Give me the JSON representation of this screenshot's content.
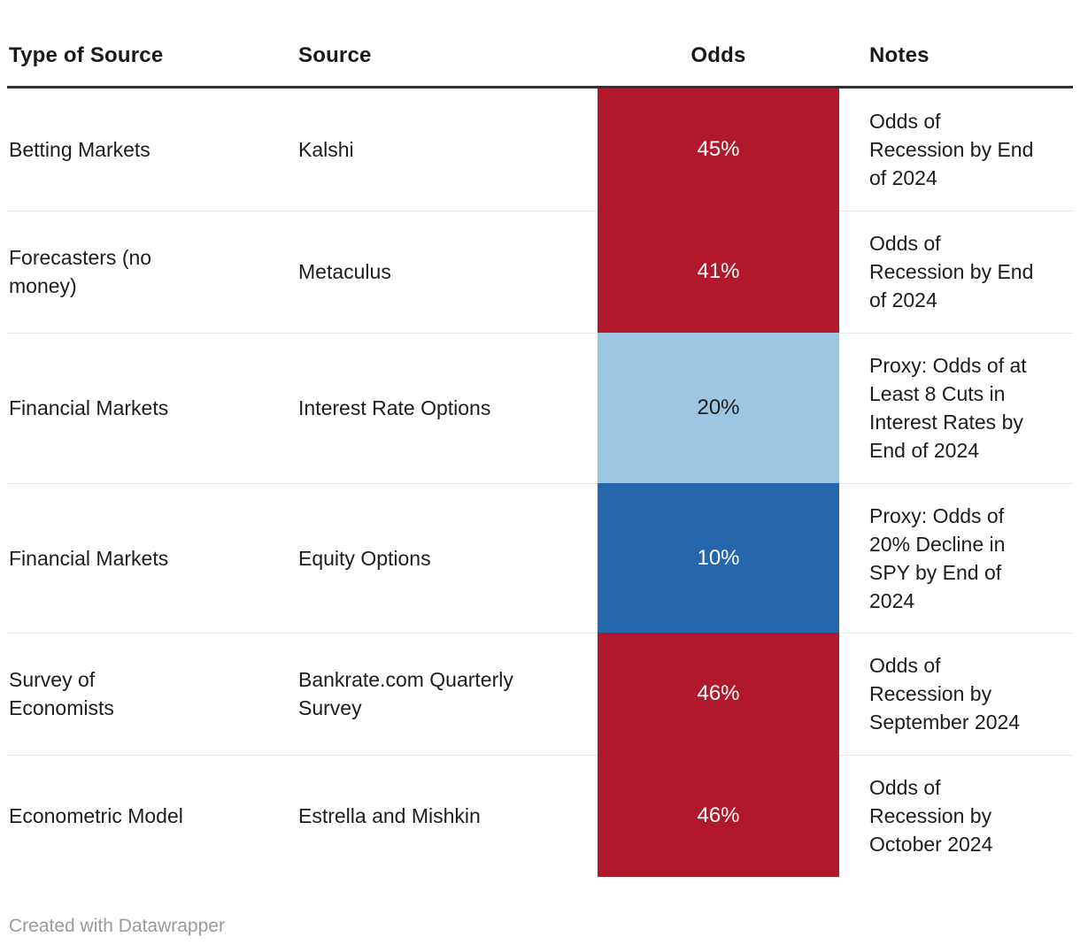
{
  "chart_data": {
    "type": "table",
    "title": "",
    "columns": [
      "Type of Source",
      "Source",
      "Odds",
      "Notes"
    ],
    "heatmap_column": "Odds",
    "palette": {
      "dark_red": "#b2182b",
      "light_blue": "#9dc6e2",
      "dark_blue": "#2467ac",
      "header_rule": "#333333",
      "row_separator": "#e9e9e9",
      "body_text": "#1d1d1d"
    },
    "rows": [
      {
        "type_of_source": "Betting Markets",
        "source": "Kalshi",
        "odds": "45%",
        "odds_pct": 45,
        "cell_color": "#b2182b",
        "odds_text_color": "#ffffff",
        "notes": "Odds of\nRecession by End\nof 2024"
      },
      {
        "type_of_source": "Forecasters (no\nmoney)",
        "source": "Metaculus",
        "odds": "41%",
        "odds_pct": 41,
        "cell_color": "#b2182b",
        "odds_text_color": "#ffffff",
        "notes": "Odds of\nRecession by End\nof 2024"
      },
      {
        "type_of_source": "Financial Markets",
        "source": "Interest Rate Options",
        "odds": "20%",
        "odds_pct": 20,
        "cell_color": "#9dc6e2",
        "odds_text_color": "#1d1d1d",
        "notes": "Proxy: Odds of at\nLeast 8 Cuts in\nInterest Rates by\nEnd of 2024"
      },
      {
        "type_of_source": "Financial Markets",
        "source": "Equity Options",
        "odds": "10%",
        "odds_pct": 10,
        "cell_color": "#2467ac",
        "odds_text_color": "#ffffff",
        "notes": "Proxy: Odds of\n20% Decline in\nSPY by End of\n2024"
      },
      {
        "type_of_source": "Survey of\nEconomists",
        "source": "Bankrate.com Quarterly\nSurvey",
        "odds": "46%",
        "odds_pct": 46,
        "cell_color": "#b2182b",
        "odds_text_color": "#ffffff",
        "notes": "Odds of\nRecession by\nSeptember 2024"
      },
      {
        "type_of_source": "Econometric Model",
        "source": "Estrella and Mishkin",
        "odds": "46%",
        "odds_pct": 46,
        "cell_color": "#b2182b",
        "odds_text_color": "#ffffff",
        "notes": "Odds of\nRecession by\nOctober 2024"
      }
    ]
  },
  "footer": {
    "credit": "Created with Datawrapper"
  }
}
